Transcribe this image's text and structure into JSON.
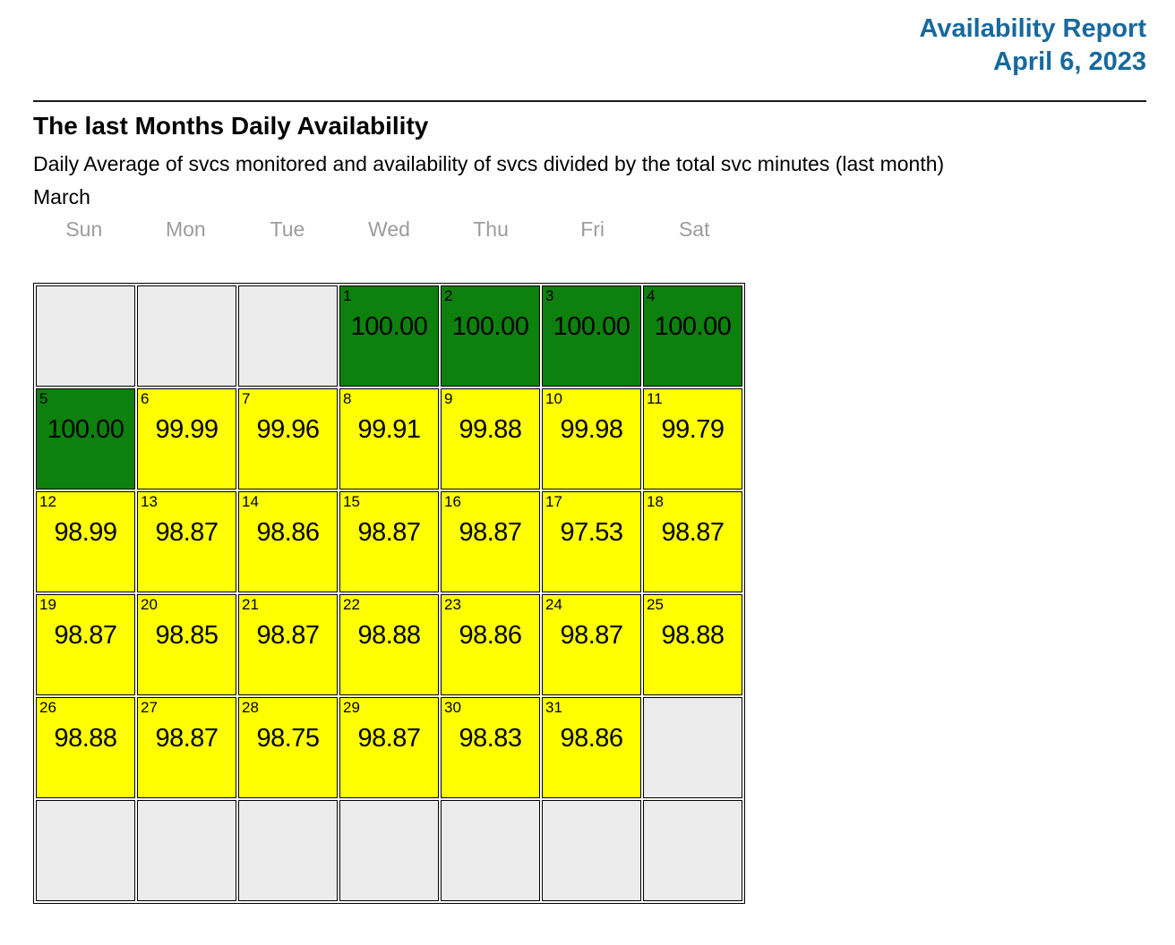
{
  "header": {
    "title": "Availability Report",
    "date": "April 6, 2023"
  },
  "report": {
    "title": "The last Months Daily Availability",
    "subtitle": "Daily Average of svcs monitored and availability of svcs divided by the total svc minutes (last month)",
    "month_label": "March"
  },
  "calendar": {
    "weekdays": [
      "Sun",
      "Mon",
      "Tue",
      "Wed",
      "Thu",
      "Fri",
      "Sat"
    ],
    "colors": {
      "accent_blue": "#17699e",
      "full_green": "#0d800d",
      "partial_yellow": "#ffff00",
      "empty_gray": "#ececec",
      "border_black": "#000000",
      "weekday_gray": "#9c9c9c"
    },
    "weeks": [
      [
        null,
        null,
        null,
        {
          "day": "1",
          "value": "100.00",
          "status": "full"
        },
        {
          "day": "2",
          "value": "100.00",
          "status": "full"
        },
        {
          "day": "3",
          "value": "100.00",
          "status": "full"
        },
        {
          "day": "4",
          "value": "100.00",
          "status": "full"
        }
      ],
      [
        {
          "day": "5",
          "value": "100.00",
          "status": "full"
        },
        {
          "day": "6",
          "value": "99.99",
          "status": "partial"
        },
        {
          "day": "7",
          "value": "99.96",
          "status": "partial"
        },
        {
          "day": "8",
          "value": "99.91",
          "status": "partial"
        },
        {
          "day": "9",
          "value": "99.88",
          "status": "partial"
        },
        {
          "day": "10",
          "value": "99.98",
          "status": "partial"
        },
        {
          "day": "11",
          "value": "99.79",
          "status": "partial"
        }
      ],
      [
        {
          "day": "12",
          "value": "98.99",
          "status": "partial"
        },
        {
          "day": "13",
          "value": "98.87",
          "status": "partial"
        },
        {
          "day": "14",
          "value": "98.86",
          "status": "partial"
        },
        {
          "day": "15",
          "value": "98.87",
          "status": "partial"
        },
        {
          "day": "16",
          "value": "98.87",
          "status": "partial"
        },
        {
          "day": "17",
          "value": "97.53",
          "status": "partial"
        },
        {
          "day": "18",
          "value": "98.87",
          "status": "partial"
        }
      ],
      [
        {
          "day": "19",
          "value": "98.87",
          "status": "partial"
        },
        {
          "day": "20",
          "value": "98.85",
          "status": "partial"
        },
        {
          "day": "21",
          "value": "98.87",
          "status": "partial"
        },
        {
          "day": "22",
          "value": "98.88",
          "status": "partial"
        },
        {
          "day": "23",
          "value": "98.86",
          "status": "partial"
        },
        {
          "day": "24",
          "value": "98.87",
          "status": "partial"
        },
        {
          "day": "25",
          "value": "98.88",
          "status": "partial"
        }
      ],
      [
        {
          "day": "26",
          "value": "98.88",
          "status": "partial"
        },
        {
          "day": "27",
          "value": "98.87",
          "status": "partial"
        },
        {
          "day": "28",
          "value": "98.75",
          "status": "partial"
        },
        {
          "day": "29",
          "value": "98.87",
          "status": "partial"
        },
        {
          "day": "30",
          "value": "98.83",
          "status": "partial"
        },
        {
          "day": "31",
          "value": "98.86",
          "status": "partial"
        },
        null
      ],
      [
        null,
        null,
        null,
        null,
        null,
        null,
        null
      ]
    ]
  }
}
